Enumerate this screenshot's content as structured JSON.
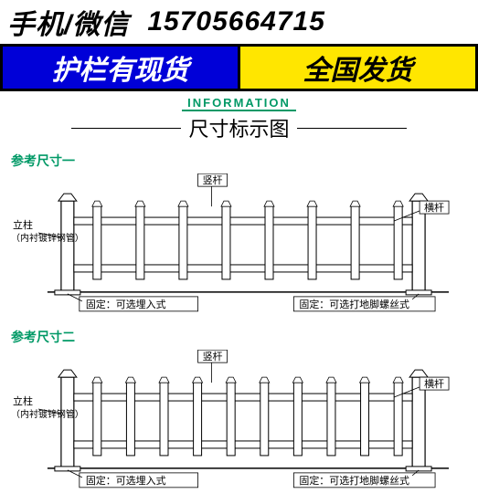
{
  "header": {
    "contact_label": "手机/微信",
    "phone": "15705664715",
    "banner_left": "护栏有现货",
    "banner_right": "全国发货",
    "banner_left_bg": "#0000d8",
    "banner_left_color": "#ffffff",
    "banner_right_bg": "#ffe600",
    "banner_right_color": "#000000"
  },
  "info": {
    "label_en": "INFORMATION",
    "title_cn": "尺寸标示图",
    "accent_color": "#009966"
  },
  "diagram1": {
    "ref_label": "参考尺寸一",
    "post_label": "立柱",
    "post_sub": "（内衬镀锌钢管）",
    "vertical_label": "竖杆",
    "horizontal_label": "横杆",
    "fixed_left": "固定：可选埋入式",
    "fixed_right": "固定：可选打地脚螺丝式",
    "picket_count": 8,
    "colors": {
      "line": "#000000",
      "fill": "#ffffff"
    }
  },
  "diagram2": {
    "ref_label": "参考尺寸二",
    "post_label": "立柱",
    "post_sub": "（内衬镀锌钢管）",
    "vertical_label": "竖杆",
    "horizontal_label": "横杆",
    "fixed_left": "固定：可选埋入式",
    "fixed_right": "固定：可选打地脚螺丝式",
    "picket_count": 10,
    "colors": {
      "line": "#000000",
      "fill": "#ffffff"
    }
  }
}
